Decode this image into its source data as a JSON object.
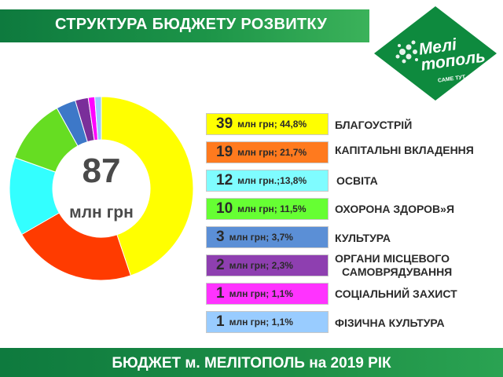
{
  "title": "СТРУКТУРА БЮДЖЕТУ РОЗВИТКУ",
  "footer": "БЮДЖЕТ м. МЕЛІТОПОЛЬ на 2019 РІК",
  "logo": {
    "name": "Мелітополь",
    "tagline": "САМЕ ТУТ...",
    "color": "#0e8a3e"
  },
  "total": {
    "value": "87",
    "unit": "млн грн"
  },
  "chart_data": {
    "type": "pie",
    "donut": true,
    "total_label": "87 млн грн",
    "categories": [
      "БЛАГОУСТРІЙ",
      "КАПІТАЛЬНІ ВКЛАДЕННЯ",
      "ОСВІТА",
      "ОХОРОНА ЗДОРОВ»Я",
      "КУЛЬТУРА",
      "ОРГАНИ МІСЦЕВОГО САМОВРЯДУВАННЯ",
      "СОЦІАЛЬНИЙ ЗАХИСТ",
      "ФІЗИЧНА КУЛЬТУРА"
    ],
    "values": [
      39,
      19,
      12,
      10,
      3,
      2,
      1,
      1
    ],
    "percents": [
      44.8,
      21.7,
      13.8,
      11.5,
      3.7,
      2.3,
      1.1,
      1.1
    ],
    "unit": "млн грн",
    "colors": [
      "#ffff00",
      "#ff3b00",
      "#33ffff",
      "#66dd22",
      "#3d78c8",
      "#7a2f9a",
      "#ff00ff",
      "#99ccff"
    ]
  },
  "rows": [
    {
      "big": "39",
      "small": "млн грн; 44,8%",
      "label": "БЛАГОУСТРІЙ",
      "bg": "#ffff00"
    },
    {
      "big": "19",
      "small": "млн грн; 21,7%",
      "label": "КАПІТАЛЬНІ ВКЛАДЕННЯ",
      "bg": "#ff7a1e"
    },
    {
      "big": "12",
      "small": "млн грн.;13,8%",
      "label": "ОСВІТА",
      "bg": "#7ffcff"
    },
    {
      "big": "10",
      "small": "млн грн; 11,5%",
      "label": "ОХОРОНА ЗДОРОВ»Я",
      "bg": "#66ff33"
    },
    {
      "big": "3",
      "small": "млн грн; 3,7%",
      "label": "КУЛЬТУРА",
      "bg": "#5b8fd6"
    },
    {
      "big": "2",
      "small": "млн грн; 2,3%",
      "label_lines": [
        "ОРГАНИ МІСЦЕВОГО",
        "САМОВРЯДУВАННЯ"
      ],
      "bg": "#8e3fb0"
    },
    {
      "big": "1",
      "small": "млн грн; 1,1%",
      "label": "СОЦІАЛЬНИЙ ЗАХИСТ",
      "bg": "#ff33ff"
    },
    {
      "big": "1",
      "small": "млн грн; 1,1%",
      "label": "ФІЗИЧНА КУЛЬТУРА",
      "bg": "#99ccff"
    }
  ]
}
